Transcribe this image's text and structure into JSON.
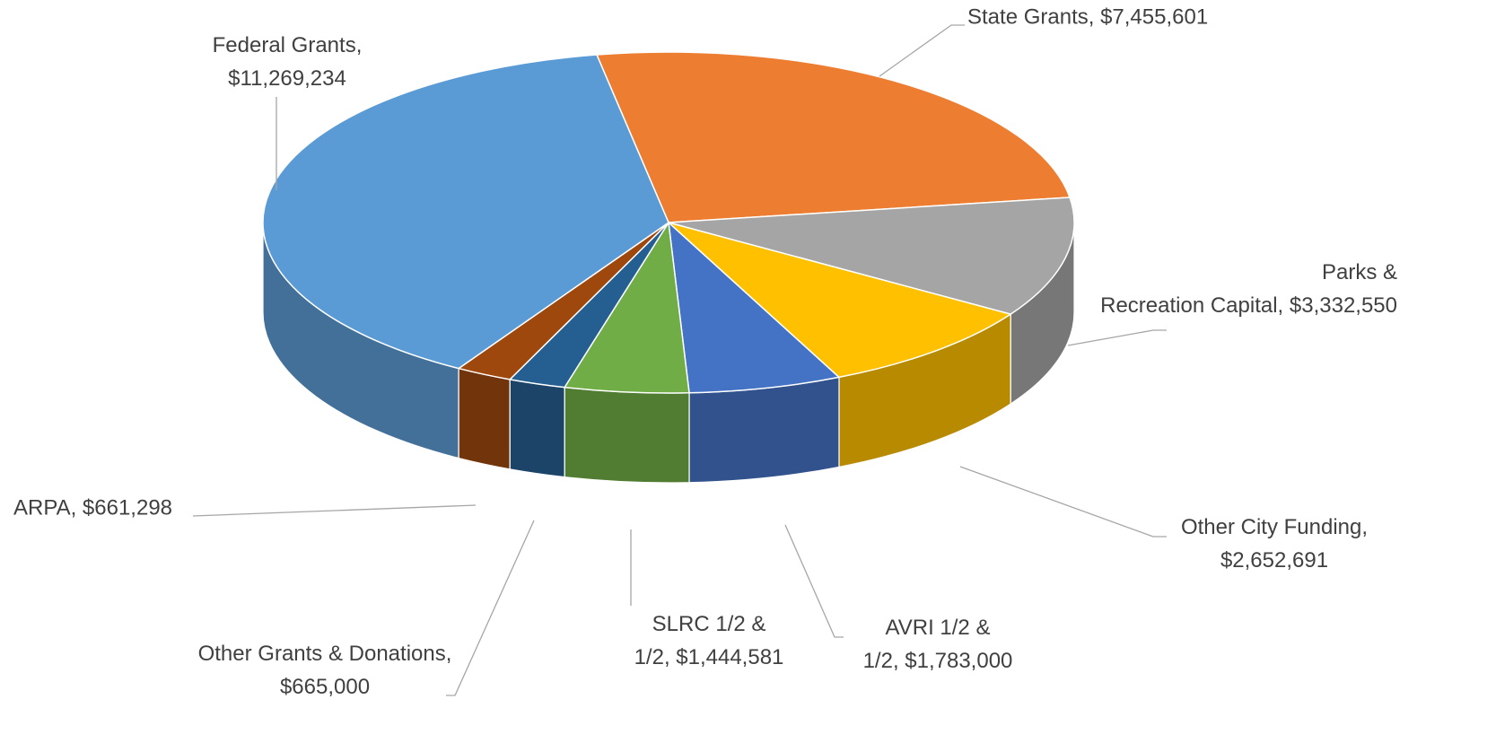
{
  "chart_data": {
    "type": "pie",
    "values": [
      7455601,
      3332550,
      2652691,
      1783000,
      1444581,
      665000,
      661298,
      11269234
    ],
    "value_labels": [
      "State Grants, $7,455,601",
      "Parks & Recreation Capital, $3,332,550",
      "Other City Funding, $2,652,691",
      "AVRI 1/2 & 1/2, $1,783,000",
      "SLRC 1/2 & 1/2, $1,444,581",
      "Other Grants & Donations, $665,000",
      "ARPA, $661,298",
      "Federal Grants, $11,269,234"
    ],
    "colors": [
      "#ED7D31",
      "#A5A5A5",
      "#FFC000",
      "#4472C4",
      "#70AD47",
      "#255E91",
      "#9E480E",
      "#5B9BD5"
    ]
  }
}
